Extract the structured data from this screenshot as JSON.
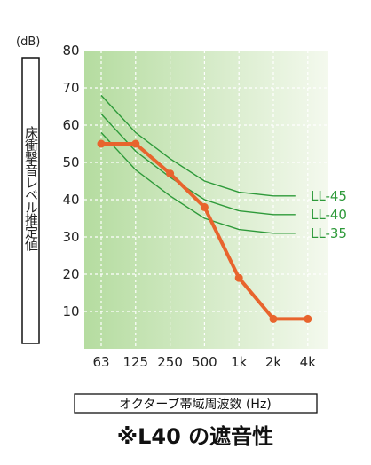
{
  "chart_data": {
    "type": "line",
    "x_categories": [
      "63",
      "125",
      "250",
      "500",
      "1k",
      "2k",
      "4k"
    ],
    "y_ticks": [
      10,
      20,
      30,
      40,
      50,
      60,
      70,
      80
    ],
    "ylim": [
      0,
      80
    ],
    "y_unit": "(dB)",
    "ylabel": "床衝撃音レベル推定値",
    "xlabel": "オクターブ帯域周波数 (Hz)",
    "caption": "※L40 の遮音性",
    "grid": true,
    "colors": {
      "measured": "#e8642d",
      "reference": "#2e9a3a",
      "bg_left": "#b5dca0",
      "bg_right": "#f4f9ee"
    },
    "reference_curves": [
      {
        "name": "LL-45",
        "values": [
          68,
          58,
          51,
          45,
          42,
          41,
          41
        ]
      },
      {
        "name": "LL-40",
        "values": [
          63,
          53,
          46,
          40,
          37,
          36,
          36
        ]
      },
      {
        "name": "LL-35",
        "values": [
          58,
          48,
          41,
          35,
          32,
          31,
          31
        ]
      }
    ],
    "series": [
      {
        "values": [
          55,
          55,
          47,
          38,
          19,
          8,
          8
        ]
      }
    ]
  }
}
